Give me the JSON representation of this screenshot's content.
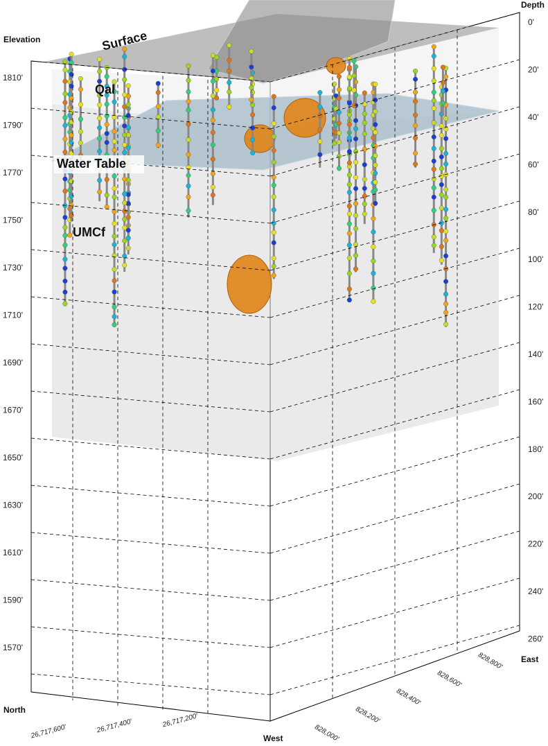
{
  "axes": {
    "elevation_title": "Elevation",
    "depth_title": "Depth",
    "north_title": "North",
    "west_title": "West",
    "east_title": "East",
    "elevation_ticks": [
      "1810'",
      "1790'",
      "1770'",
      "1750'",
      "1730'",
      "1710'",
      "1690'",
      "1670'",
      "1650'",
      "1630'",
      "1610'",
      "1590'",
      "1570'"
    ],
    "depth_ticks": [
      "0'",
      "20'",
      "40'",
      "60'",
      "80'",
      "100'",
      "120'",
      "140'",
      "160'",
      "180'",
      "200'",
      "220'",
      "240'",
      "260'"
    ],
    "north_ticks": [
      "26,717,600'",
      "26,717,400'",
      "26,717,200'"
    ],
    "east_ticks": [
      "828,000'",
      "828,200'",
      "828,400'",
      "828,600'",
      "828,800'"
    ]
  },
  "layers": {
    "surface": "Surface",
    "qal": "Qal",
    "water_table": "Water Table",
    "umcf": "UMCf"
  }
}
